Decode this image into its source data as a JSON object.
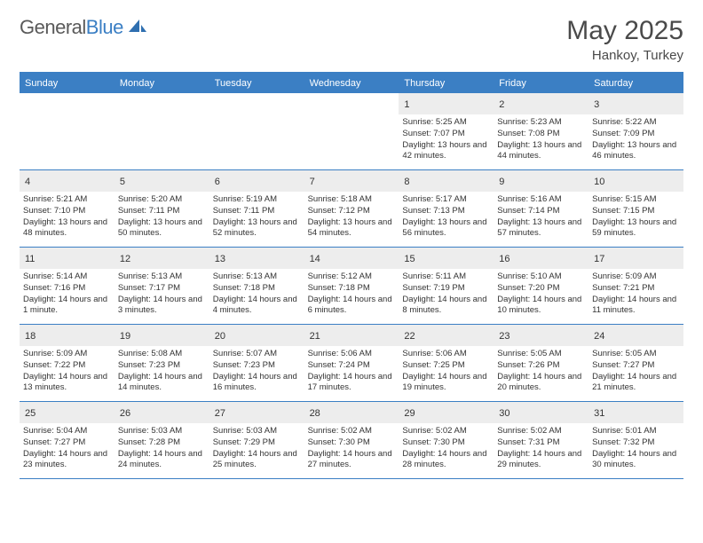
{
  "brand": {
    "text1": "General",
    "text2": "Blue",
    "icon_color": "#2f6fb0"
  },
  "title": "May 2025",
  "location": "Hankoy, Turkey",
  "colors": {
    "accent": "#3b7fc4",
    "daynum_bg": "#ededed",
    "text": "#333333",
    "bg": "#ffffff"
  },
  "weekdays": [
    "Sunday",
    "Monday",
    "Tuesday",
    "Wednesday",
    "Thursday",
    "Friday",
    "Saturday"
  ],
  "weeks": [
    [
      {
        "empty": true
      },
      {
        "empty": true
      },
      {
        "empty": true
      },
      {
        "empty": true
      },
      {
        "n": "1",
        "sunrise": "Sunrise: 5:25 AM",
        "sunset": "Sunset: 7:07 PM",
        "daylight": "Daylight: 13 hours and 42 minutes."
      },
      {
        "n": "2",
        "sunrise": "Sunrise: 5:23 AM",
        "sunset": "Sunset: 7:08 PM",
        "daylight": "Daylight: 13 hours and 44 minutes."
      },
      {
        "n": "3",
        "sunrise": "Sunrise: 5:22 AM",
        "sunset": "Sunset: 7:09 PM",
        "daylight": "Daylight: 13 hours and 46 minutes."
      }
    ],
    [
      {
        "n": "4",
        "sunrise": "Sunrise: 5:21 AM",
        "sunset": "Sunset: 7:10 PM",
        "daylight": "Daylight: 13 hours and 48 minutes."
      },
      {
        "n": "5",
        "sunrise": "Sunrise: 5:20 AM",
        "sunset": "Sunset: 7:11 PM",
        "daylight": "Daylight: 13 hours and 50 minutes."
      },
      {
        "n": "6",
        "sunrise": "Sunrise: 5:19 AM",
        "sunset": "Sunset: 7:11 PM",
        "daylight": "Daylight: 13 hours and 52 minutes."
      },
      {
        "n": "7",
        "sunrise": "Sunrise: 5:18 AM",
        "sunset": "Sunset: 7:12 PM",
        "daylight": "Daylight: 13 hours and 54 minutes."
      },
      {
        "n": "8",
        "sunrise": "Sunrise: 5:17 AM",
        "sunset": "Sunset: 7:13 PM",
        "daylight": "Daylight: 13 hours and 56 minutes."
      },
      {
        "n": "9",
        "sunrise": "Sunrise: 5:16 AM",
        "sunset": "Sunset: 7:14 PM",
        "daylight": "Daylight: 13 hours and 57 minutes."
      },
      {
        "n": "10",
        "sunrise": "Sunrise: 5:15 AM",
        "sunset": "Sunset: 7:15 PM",
        "daylight": "Daylight: 13 hours and 59 minutes."
      }
    ],
    [
      {
        "n": "11",
        "sunrise": "Sunrise: 5:14 AM",
        "sunset": "Sunset: 7:16 PM",
        "daylight": "Daylight: 14 hours and 1 minute."
      },
      {
        "n": "12",
        "sunrise": "Sunrise: 5:13 AM",
        "sunset": "Sunset: 7:17 PM",
        "daylight": "Daylight: 14 hours and 3 minutes."
      },
      {
        "n": "13",
        "sunrise": "Sunrise: 5:13 AM",
        "sunset": "Sunset: 7:18 PM",
        "daylight": "Daylight: 14 hours and 4 minutes."
      },
      {
        "n": "14",
        "sunrise": "Sunrise: 5:12 AM",
        "sunset": "Sunset: 7:18 PM",
        "daylight": "Daylight: 14 hours and 6 minutes."
      },
      {
        "n": "15",
        "sunrise": "Sunrise: 5:11 AM",
        "sunset": "Sunset: 7:19 PM",
        "daylight": "Daylight: 14 hours and 8 minutes."
      },
      {
        "n": "16",
        "sunrise": "Sunrise: 5:10 AM",
        "sunset": "Sunset: 7:20 PM",
        "daylight": "Daylight: 14 hours and 10 minutes."
      },
      {
        "n": "17",
        "sunrise": "Sunrise: 5:09 AM",
        "sunset": "Sunset: 7:21 PM",
        "daylight": "Daylight: 14 hours and 11 minutes."
      }
    ],
    [
      {
        "n": "18",
        "sunrise": "Sunrise: 5:09 AM",
        "sunset": "Sunset: 7:22 PM",
        "daylight": "Daylight: 14 hours and 13 minutes."
      },
      {
        "n": "19",
        "sunrise": "Sunrise: 5:08 AM",
        "sunset": "Sunset: 7:23 PM",
        "daylight": "Daylight: 14 hours and 14 minutes."
      },
      {
        "n": "20",
        "sunrise": "Sunrise: 5:07 AM",
        "sunset": "Sunset: 7:23 PM",
        "daylight": "Daylight: 14 hours and 16 minutes."
      },
      {
        "n": "21",
        "sunrise": "Sunrise: 5:06 AM",
        "sunset": "Sunset: 7:24 PM",
        "daylight": "Daylight: 14 hours and 17 minutes."
      },
      {
        "n": "22",
        "sunrise": "Sunrise: 5:06 AM",
        "sunset": "Sunset: 7:25 PM",
        "daylight": "Daylight: 14 hours and 19 minutes."
      },
      {
        "n": "23",
        "sunrise": "Sunrise: 5:05 AM",
        "sunset": "Sunset: 7:26 PM",
        "daylight": "Daylight: 14 hours and 20 minutes."
      },
      {
        "n": "24",
        "sunrise": "Sunrise: 5:05 AM",
        "sunset": "Sunset: 7:27 PM",
        "daylight": "Daylight: 14 hours and 21 minutes."
      }
    ],
    [
      {
        "n": "25",
        "sunrise": "Sunrise: 5:04 AM",
        "sunset": "Sunset: 7:27 PM",
        "daylight": "Daylight: 14 hours and 23 minutes."
      },
      {
        "n": "26",
        "sunrise": "Sunrise: 5:03 AM",
        "sunset": "Sunset: 7:28 PM",
        "daylight": "Daylight: 14 hours and 24 minutes."
      },
      {
        "n": "27",
        "sunrise": "Sunrise: 5:03 AM",
        "sunset": "Sunset: 7:29 PM",
        "daylight": "Daylight: 14 hours and 25 minutes."
      },
      {
        "n": "28",
        "sunrise": "Sunrise: 5:02 AM",
        "sunset": "Sunset: 7:30 PM",
        "daylight": "Daylight: 14 hours and 27 minutes."
      },
      {
        "n": "29",
        "sunrise": "Sunrise: 5:02 AM",
        "sunset": "Sunset: 7:30 PM",
        "daylight": "Daylight: 14 hours and 28 minutes."
      },
      {
        "n": "30",
        "sunrise": "Sunrise: 5:02 AM",
        "sunset": "Sunset: 7:31 PM",
        "daylight": "Daylight: 14 hours and 29 minutes."
      },
      {
        "n": "31",
        "sunrise": "Sunrise: 5:01 AM",
        "sunset": "Sunset: 7:32 PM",
        "daylight": "Daylight: 14 hours and 30 minutes."
      }
    ]
  ]
}
